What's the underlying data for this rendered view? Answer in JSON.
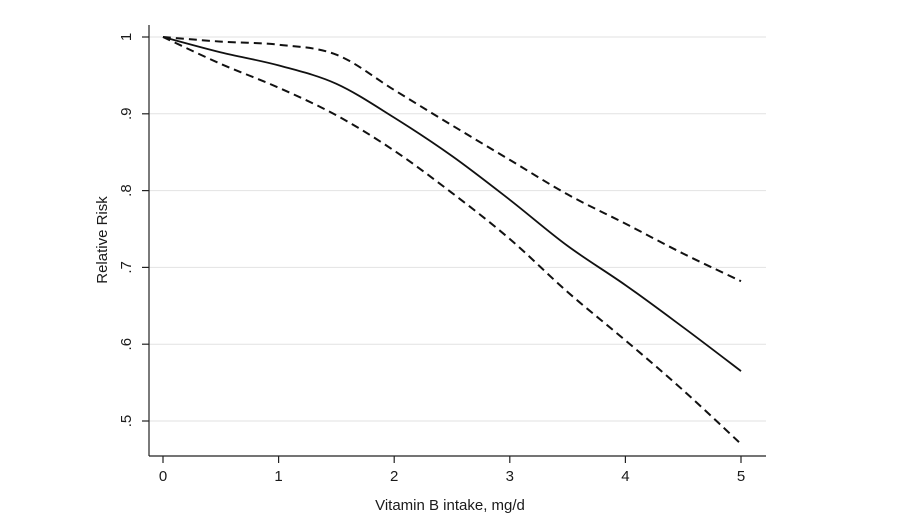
{
  "chart_data": {
    "type": "line",
    "title": "",
    "xlabel": "Vitamin B intake, mg/d",
    "ylabel": "Relative Risk",
    "xlim": [
      0,
      5
    ],
    "ylim": [
      0.47,
      1.0
    ],
    "x_ticks": [
      0,
      1,
      2,
      3,
      4,
      5
    ],
    "x_tick_labels": [
      "0",
      "1",
      "2",
      "3",
      "4",
      "5"
    ],
    "y_ticks": [
      0.5,
      0.6,
      0.7,
      0.8,
      0.9,
      1.0
    ],
    "y_tick_labels": [
      ".5",
      ".6",
      ".7",
      ".8",
      ".9",
      "1"
    ],
    "grid": "horizontal",
    "legend": "none",
    "series": [
      {
        "style": "solid",
        "x": [
          0,
          0.5,
          1,
          1.5,
          2,
          2.5,
          3,
          3.5,
          4,
          4.5,
          5
        ],
        "y": [
          1.0,
          0.98,
          0.963,
          0.939,
          0.895,
          0.845,
          0.788,
          0.728,
          0.677,
          0.622,
          0.565
        ]
      },
      {
        "style": "dashed",
        "x": [
          0,
          0.5,
          1,
          1.5,
          2,
          2.5,
          3,
          3.5,
          4,
          4.5,
          5
        ],
        "y": [
          1.0,
          0.994,
          0.99,
          0.977,
          0.931,
          0.885,
          0.84,
          0.795,
          0.757,
          0.718,
          0.682
        ]
      },
      {
        "style": "dashed",
        "x": [
          0,
          0.5,
          1,
          1.5,
          2,
          2.5,
          3,
          3.5,
          4,
          4.5,
          5
        ],
        "y": [
          1.0,
          0.965,
          0.934,
          0.898,
          0.852,
          0.797,
          0.737,
          0.668,
          0.605,
          0.54,
          0.47
        ]
      }
    ],
    "colors": {
      "line": "#111111",
      "grid": "#e2e2e2",
      "axis": "#222222"
    }
  }
}
